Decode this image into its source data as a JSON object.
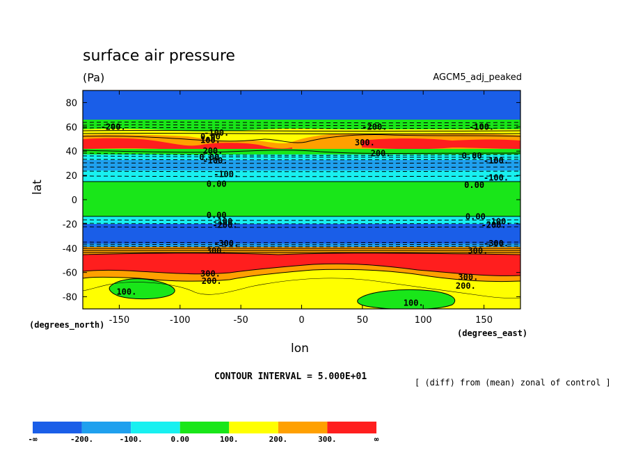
{
  "title": "surface air pressure",
  "units": "(Pa)",
  "model": "AGCM5_adj_peaked",
  "ylabel": "lat",
  "xlabel": "lon",
  "ynote": "(degrees_north)",
  "xnote": "(degrees_east)",
  "contour_interval": "CONTOUR INTERVAL = 5.000E+01",
  "diff_note": "[ (diff) from (mean) zonal of control ]",
  "chart_data": {
    "type": "heatmap",
    "title": "surface air pressure",
    "subtitle": "(Pa)",
    "xlabel": "lon",
    "ylabel": "lat",
    "xlim": [
      -180,
      180
    ],
    "ylim": [
      -90,
      90
    ],
    "xticks": [
      -150,
      -100,
      -50,
      0,
      50,
      100,
      150
    ],
    "yticks": [
      80,
      60,
      40,
      20,
      0,
      -20,
      -40,
      -60,
      -80
    ],
    "colorbar": {
      "levels": [
        "-∞",
        "-200.",
        "-100.",
        "0.00",
        "100.",
        "200.",
        "300.",
        "∞"
      ],
      "colors": [
        "#1a5ee8",
        "#1fa0ee",
        "#18f0f0",
        "#19e619",
        "#ffff00",
        "#ffa000",
        "#ff1e1e"
      ]
    },
    "bands": [
      {
        "lat_top": 90,
        "lat_bottom": 62,
        "value": "< -200"
      },
      {
        "lat_top": 62,
        "lat_bottom": 52,
        "value": "-200 to 0"
      },
      {
        "lat_top": 52,
        "lat_bottom": 37,
        "value": "0 to > 300"
      },
      {
        "lat_top": 37,
        "lat_bottom": 14,
        "value": "-200 to 0"
      },
      {
        "lat_top": 14,
        "lat_bottom": -13,
        "value": "0 to 100"
      },
      {
        "lat_top": -13,
        "lat_bottom": -20,
        "value": "-100 to 0"
      },
      {
        "lat_top": -20,
        "lat_bottom": -35,
        "value": "< -200"
      },
      {
        "lat_top": -35,
        "lat_bottom": -45,
        "value": "-200 to 300"
      },
      {
        "lat_top": -45,
        "lat_bottom": -60,
        "value": "> 300"
      },
      {
        "lat_top": -60,
        "lat_bottom": -67,
        "value": "200 to 300"
      },
      {
        "lat_top": -67,
        "lat_bottom": -90,
        "value": "100 to 200"
      }
    ],
    "contour_labels": [
      {
        "text": "-200.",
        "lon": -155,
        "lat": 60
      },
      {
        "text": "-200.",
        "lon": 60,
        "lat": 60
      },
      {
        "text": "-100.",
        "lon": 148,
        "lat": 60
      },
      {
        "text": "-100.",
        "lon": -70,
        "lat": 55
      },
      {
        "text": "0.00",
        "lon": -75,
        "lat": 52
      },
      {
        "text": "100.",
        "lon": -75,
        "lat": 49
      },
      {
        "text": "300.",
        "lon": 52,
        "lat": 47
      },
      {
        "text": "200.",
        "lon": -73,
        "lat": 40
      },
      {
        "text": "200.",
        "lon": 65,
        "lat": 38
      },
      {
        "text": "0.00",
        "lon": -76,
        "lat": 35
      },
      {
        "text": "-100.",
        "lon": -71,
        "lat": 32
      },
      {
        "text": "0.00",
        "lon": 140,
        "lat": 36
      },
      {
        "text": "-100.",
        "lon": 160,
        "lat": 32
      },
      {
        "text": "-100.",
        "lon": -62,
        "lat": 21
      },
      {
        "text": "-100.",
        "lon": 160,
        "lat": 18
      },
      {
        "text": "0.00",
        "lon": -70,
        "lat": 13
      },
      {
        "text": "0.00",
        "lon": 142,
        "lat": 12
      },
      {
        "text": "0.00",
        "lon": -70,
        "lat": -13
      },
      {
        "text": "0.00",
        "lon": 143,
        "lat": -14
      },
      {
        "text": "-100.",
        "lon": -63,
        "lat": -18
      },
      {
        "text": "-200.",
        "lon": -63,
        "lat": -21
      },
      {
        "text": "-100.",
        "lon": 162,
        "lat": -18
      },
      {
        "text": "-200.",
        "lon": 158,
        "lat": -21
      },
      {
        "text": "-300.",
        "lon": -62,
        "lat": -36
      },
      {
        "text": "300.",
        "lon": -70,
        "lat": -42
      },
      {
        "text": "-300.",
        "lon": 160,
        "lat": -36
      },
      {
        "text": "300.",
        "lon": 145,
        "lat": -42
      },
      {
        "text": "300.",
        "lon": -75,
        "lat": -61
      },
      {
        "text": "200.",
        "lon": -74,
        "lat": -67
      },
      {
        "text": "300.",
        "lon": 137,
        "lat": -64
      },
      {
        "text": "200.",
        "lon": 135,
        "lat": -71
      },
      {
        "text": "100.",
        "lon": -144,
        "lat": -76
      },
      {
        "text": "100.",
        "lon": 92,
        "lat": -85
      }
    ]
  }
}
